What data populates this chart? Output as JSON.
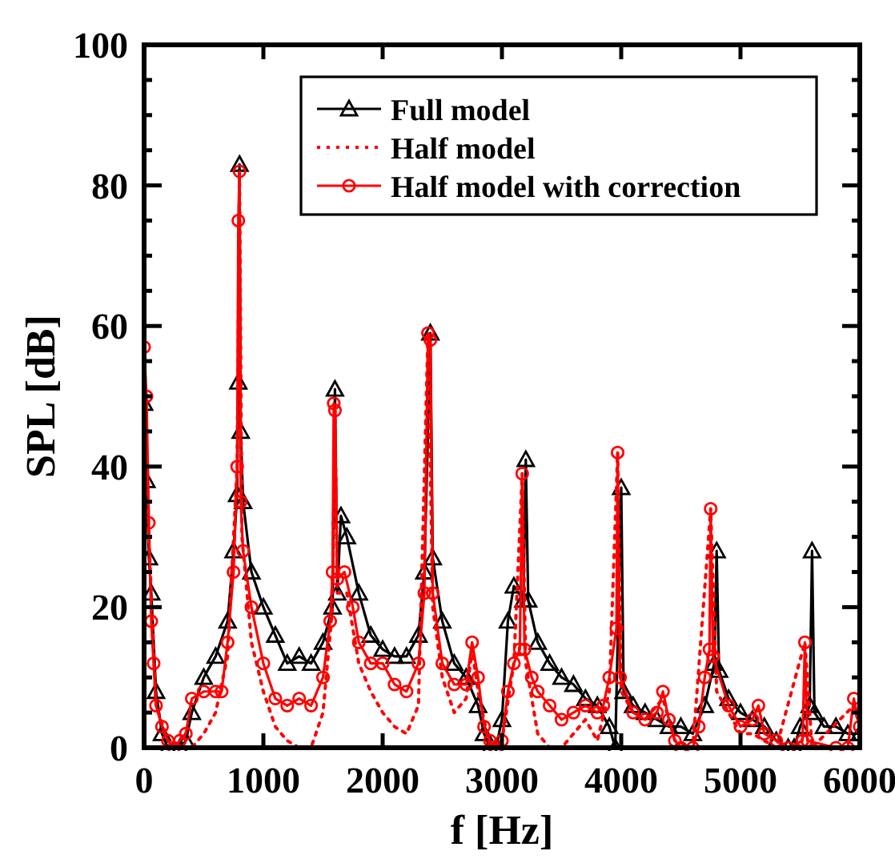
{
  "chart_data": {
    "type": "line",
    "xlabel": "f [Hz]",
    "ylabel": "SPL [dB]",
    "xlim": [
      0,
      6000
    ],
    "ylim": [
      0,
      100
    ],
    "xticks": [
      0,
      1000,
      2000,
      3000,
      4000,
      5000,
      6000
    ],
    "yticks": [
      0,
      {
        "value": 5,
        "label": null
      },
      {
        "value": 10,
        "label": null
      },
      {
        "value": 15,
        "label": null
      },
      20,
      {
        "value": 25,
        "label": null
      },
      {
        "value": 30,
        "label": null
      },
      {
        "value": 35,
        "label": null
      },
      40,
      {
        "value": 45,
        "label": null
      },
      {
        "value": 50,
        "label": null
      },
      {
        "value": 55,
        "label": null
      },
      60,
      {
        "value": 65,
        "label": null
      },
      {
        "value": 70,
        "label": null
      },
      {
        "value": 75,
        "label": null
      },
      80,
      {
        "value": 85,
        "label": null
      },
      {
        "value": 90,
        "label": null
      },
      {
        "value": 95,
        "label": null
      },
      100
    ],
    "grid": false,
    "legend": "top right",
    "series": [
      {
        "name": "Full model",
        "color": "#000000",
        "marker": "triangle",
        "line_style": "solid",
        "x": [
          0,
          20,
          40,
          60,
          100,
          150,
          200,
          300,
          350,
          400,
          500,
          600,
          700,
          750,
          780,
          790,
          800,
          810,
          830,
          900,
          1000,
          1100,
          1200,
          1300,
          1400,
          1500,
          1580,
          1600,
          1620,
          1650,
          1700,
          1800,
          1900,
          2000,
          2100,
          2200,
          2300,
          2350,
          2400,
          2420,
          2500,
          2600,
          2700,
          2800,
          2850,
          2900,
          2950,
          3000,
          3050,
          3100,
          3180,
          3200,
          3220,
          3300,
          3400,
          3500,
          3600,
          3700,
          3800,
          3900,
          3950,
          4000,
          4020,
          4100,
          4200,
          4300,
          4400,
          4500,
          4600,
          4700,
          4780,
          4800,
          4820,
          4900,
          5000,
          5100,
          5200,
          5300,
          5400,
          5450,
          5500,
          5580,
          5600,
          5620,
          5700,
          5800,
          5900,
          6000
        ],
        "values": [
          49,
          38,
          27,
          22,
          8,
          2,
          0,
          0,
          1,
          5,
          10,
          13,
          18,
          28,
          36,
          52,
          83,
          45,
          35,
          25,
          20,
          16,
          12,
          13,
          12,
          15,
          20,
          51,
          22,
          33,
          30,
          22,
          16,
          14,
          13,
          13,
          16,
          25,
          59,
          27,
          18,
          12,
          10,
          6,
          2,
          0,
          0,
          4,
          18,
          23,
          21,
          41,
          21,
          15,
          12,
          10,
          9,
          7,
          6,
          3,
          0,
          37,
          8,
          6,
          5,
          4,
          3,
          3,
          2,
          6,
          12,
          28,
          11,
          7,
          5,
          4,
          3,
          1,
          0,
          0,
          3,
          6,
          28,
          5,
          3,
          3,
          2,
          2
        ]
      },
      {
        "name": "Half model",
        "color": "#ff0000",
        "marker": "none",
        "line_style": "dotted",
        "x": [
          0,
          40,
          100,
          200,
          300,
          400,
          500,
          600,
          700,
          780,
          800,
          820,
          900,
          1000,
          1100,
          1200,
          1300,
          1400,
          1500,
          1580,
          1600,
          1620,
          1700,
          1800,
          1900,
          2000,
          2100,
          2200,
          2300,
          2380,
          2420,
          2500,
          2600,
          2700,
          2750,
          2800,
          2900,
          3000,
          3100,
          3170,
          3200,
          3300,
          3400,
          3500,
          3600,
          3700,
          3800,
          3900,
          3970,
          4000,
          4100,
          4200,
          4350,
          4450,
          4600,
          4750,
          4800,
          4900,
          5000,
          5100,
          5200,
          5300,
          5540,
          5600,
          5950,
          6000
        ],
        "values": [
          57,
          30,
          6,
          1,
          0,
          0,
          2,
          5,
          13,
          40,
          82,
          30,
          15,
          8,
          3,
          1,
          0,
          0,
          5,
          20,
          48,
          22,
          22,
          12,
          8,
          5,
          3,
          2,
          6,
          59,
          20,
          10,
          5,
          7,
          14,
          8,
          0,
          1,
          12,
          39,
          12,
          2,
          0,
          0,
          2,
          4,
          1,
          8,
          42,
          8,
          5,
          4,
          7,
          1,
          0,
          34,
          8,
          5,
          2,
          2,
          1,
          0,
          15,
          0,
          6,
          3
        ]
      },
      {
        "name": "Half model with correction",
        "color": "#ff0000",
        "marker": "circle",
        "line_style": "solid",
        "x": [
          0,
          20,
          40,
          60,
          80,
          100,
          150,
          200,
          250,
          300,
          350,
          400,
          500,
          600,
          650,
          700,
          750,
          780,
          790,
          800,
          810,
          830,
          900,
          1000,
          1100,
          1200,
          1300,
          1400,
          1500,
          1560,
          1580,
          1590,
          1600,
          1620,
          1680,
          1750,
          1800,
          1900,
          2000,
          2100,
          2200,
          2300,
          2350,
          2380,
          2400,
          2420,
          2500,
          2600,
          2700,
          2750,
          2800,
          2850,
          2900,
          2950,
          3000,
          3050,
          3100,
          3150,
          3170,
          3190,
          3250,
          3300,
          3400,
          3500,
          3600,
          3700,
          3800,
          3850,
          3900,
          3960,
          3970,
          3990,
          4100,
          4200,
          4300,
          4350,
          4400,
          4450,
          4500,
          4600,
          4650,
          4700,
          4740,
          4750,
          4770,
          4900,
          5000,
          5100,
          5150,
          5200,
          5300,
          5400,
          5520,
          5540,
          5560,
          5800,
          5900,
          5950,
          6000
        ],
        "values": [
          57,
          50,
          32,
          18,
          12,
          6,
          3,
          1,
          0,
          1,
          2,
          7,
          8,
          8,
          8,
          15,
          25,
          40,
          75,
          82,
          35,
          28,
          20,
          12,
          7,
          6,
          7,
          6,
          10,
          18,
          25,
          49,
          48,
          24,
          25,
          20,
          15,
          12,
          12,
          9,
          8,
          12,
          22,
          59,
          58,
          22,
          12,
          9,
          9,
          15,
          10,
          3,
          1,
          0,
          1,
          8,
          12,
          14,
          39,
          14,
          10,
          8,
          6,
          4,
          5,
          6,
          5,
          6,
          10,
          17,
          42,
          10,
          5,
          4,
          5,
          8,
          4,
          1,
          0,
          0,
          3,
          10,
          14,
          34,
          13,
          6,
          3,
          4,
          6,
          2,
          1,
          0,
          1,
          15,
          1,
          0,
          0,
          7,
          3
        ]
      }
    ]
  }
}
